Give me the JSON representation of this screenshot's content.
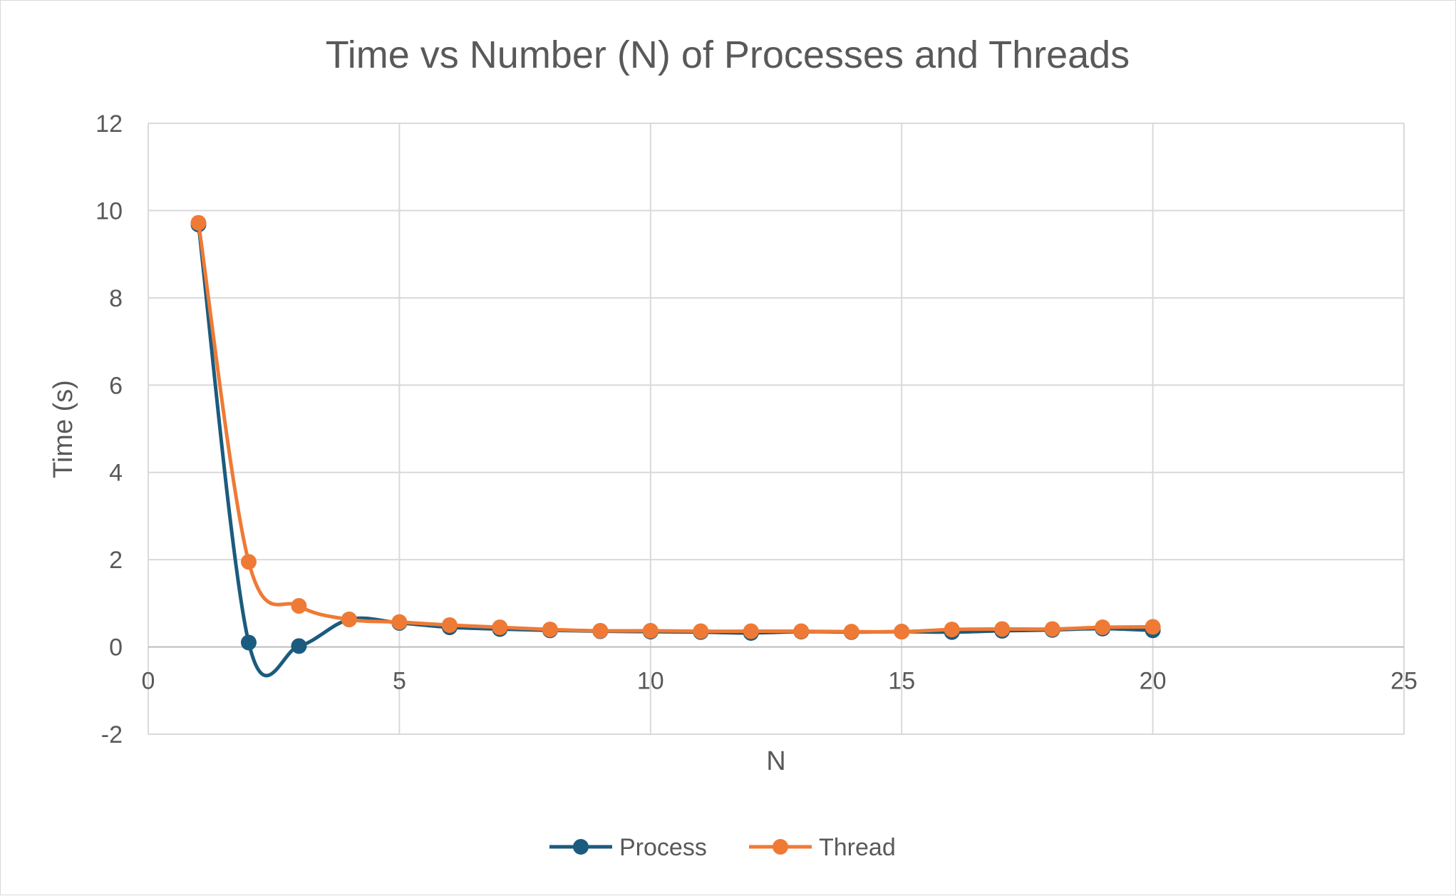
{
  "chart_data": {
    "type": "scatter",
    "title": "Time vs Number (N) of Processes and Threads",
    "xlabel": "N",
    "ylabel": "Time (s)",
    "xlim": [
      0,
      25
    ],
    "ylim": [
      -2,
      12
    ],
    "x_ticks": [
      0,
      5,
      10,
      15,
      20,
      25
    ],
    "y_ticks": [
      -2,
      0,
      2,
      4,
      6,
      8,
      10,
      12
    ],
    "grid": true,
    "smoothed_lines": true,
    "legend_position": "bottom",
    "series": [
      {
        "name": "Process",
        "color": "#1b5b7e",
        "x": [
          1,
          2,
          3,
          4,
          5,
          6,
          7,
          8,
          9,
          10,
          11,
          12,
          13,
          14,
          15,
          16,
          17,
          18,
          19,
          20
        ],
        "y": [
          9.68,
          0.1,
          0.02,
          0.63,
          0.55,
          0.45,
          0.41,
          0.38,
          0.36,
          0.35,
          0.34,
          0.32,
          0.35,
          0.34,
          0.35,
          0.34,
          0.37,
          0.39,
          0.42,
          0.38
        ]
      },
      {
        "name": "Thread",
        "color": "#ef7a35",
        "x": [
          1,
          2,
          3,
          4,
          5,
          6,
          7,
          8,
          9,
          10,
          11,
          12,
          13,
          14,
          15,
          16,
          17,
          18,
          19,
          20
        ],
        "y": [
          9.72,
          1.95,
          0.94,
          0.63,
          0.57,
          0.5,
          0.45,
          0.4,
          0.37,
          0.37,
          0.36,
          0.36,
          0.36,
          0.35,
          0.35,
          0.4,
          0.41,
          0.41,
          0.45,
          0.46
        ]
      }
    ]
  }
}
